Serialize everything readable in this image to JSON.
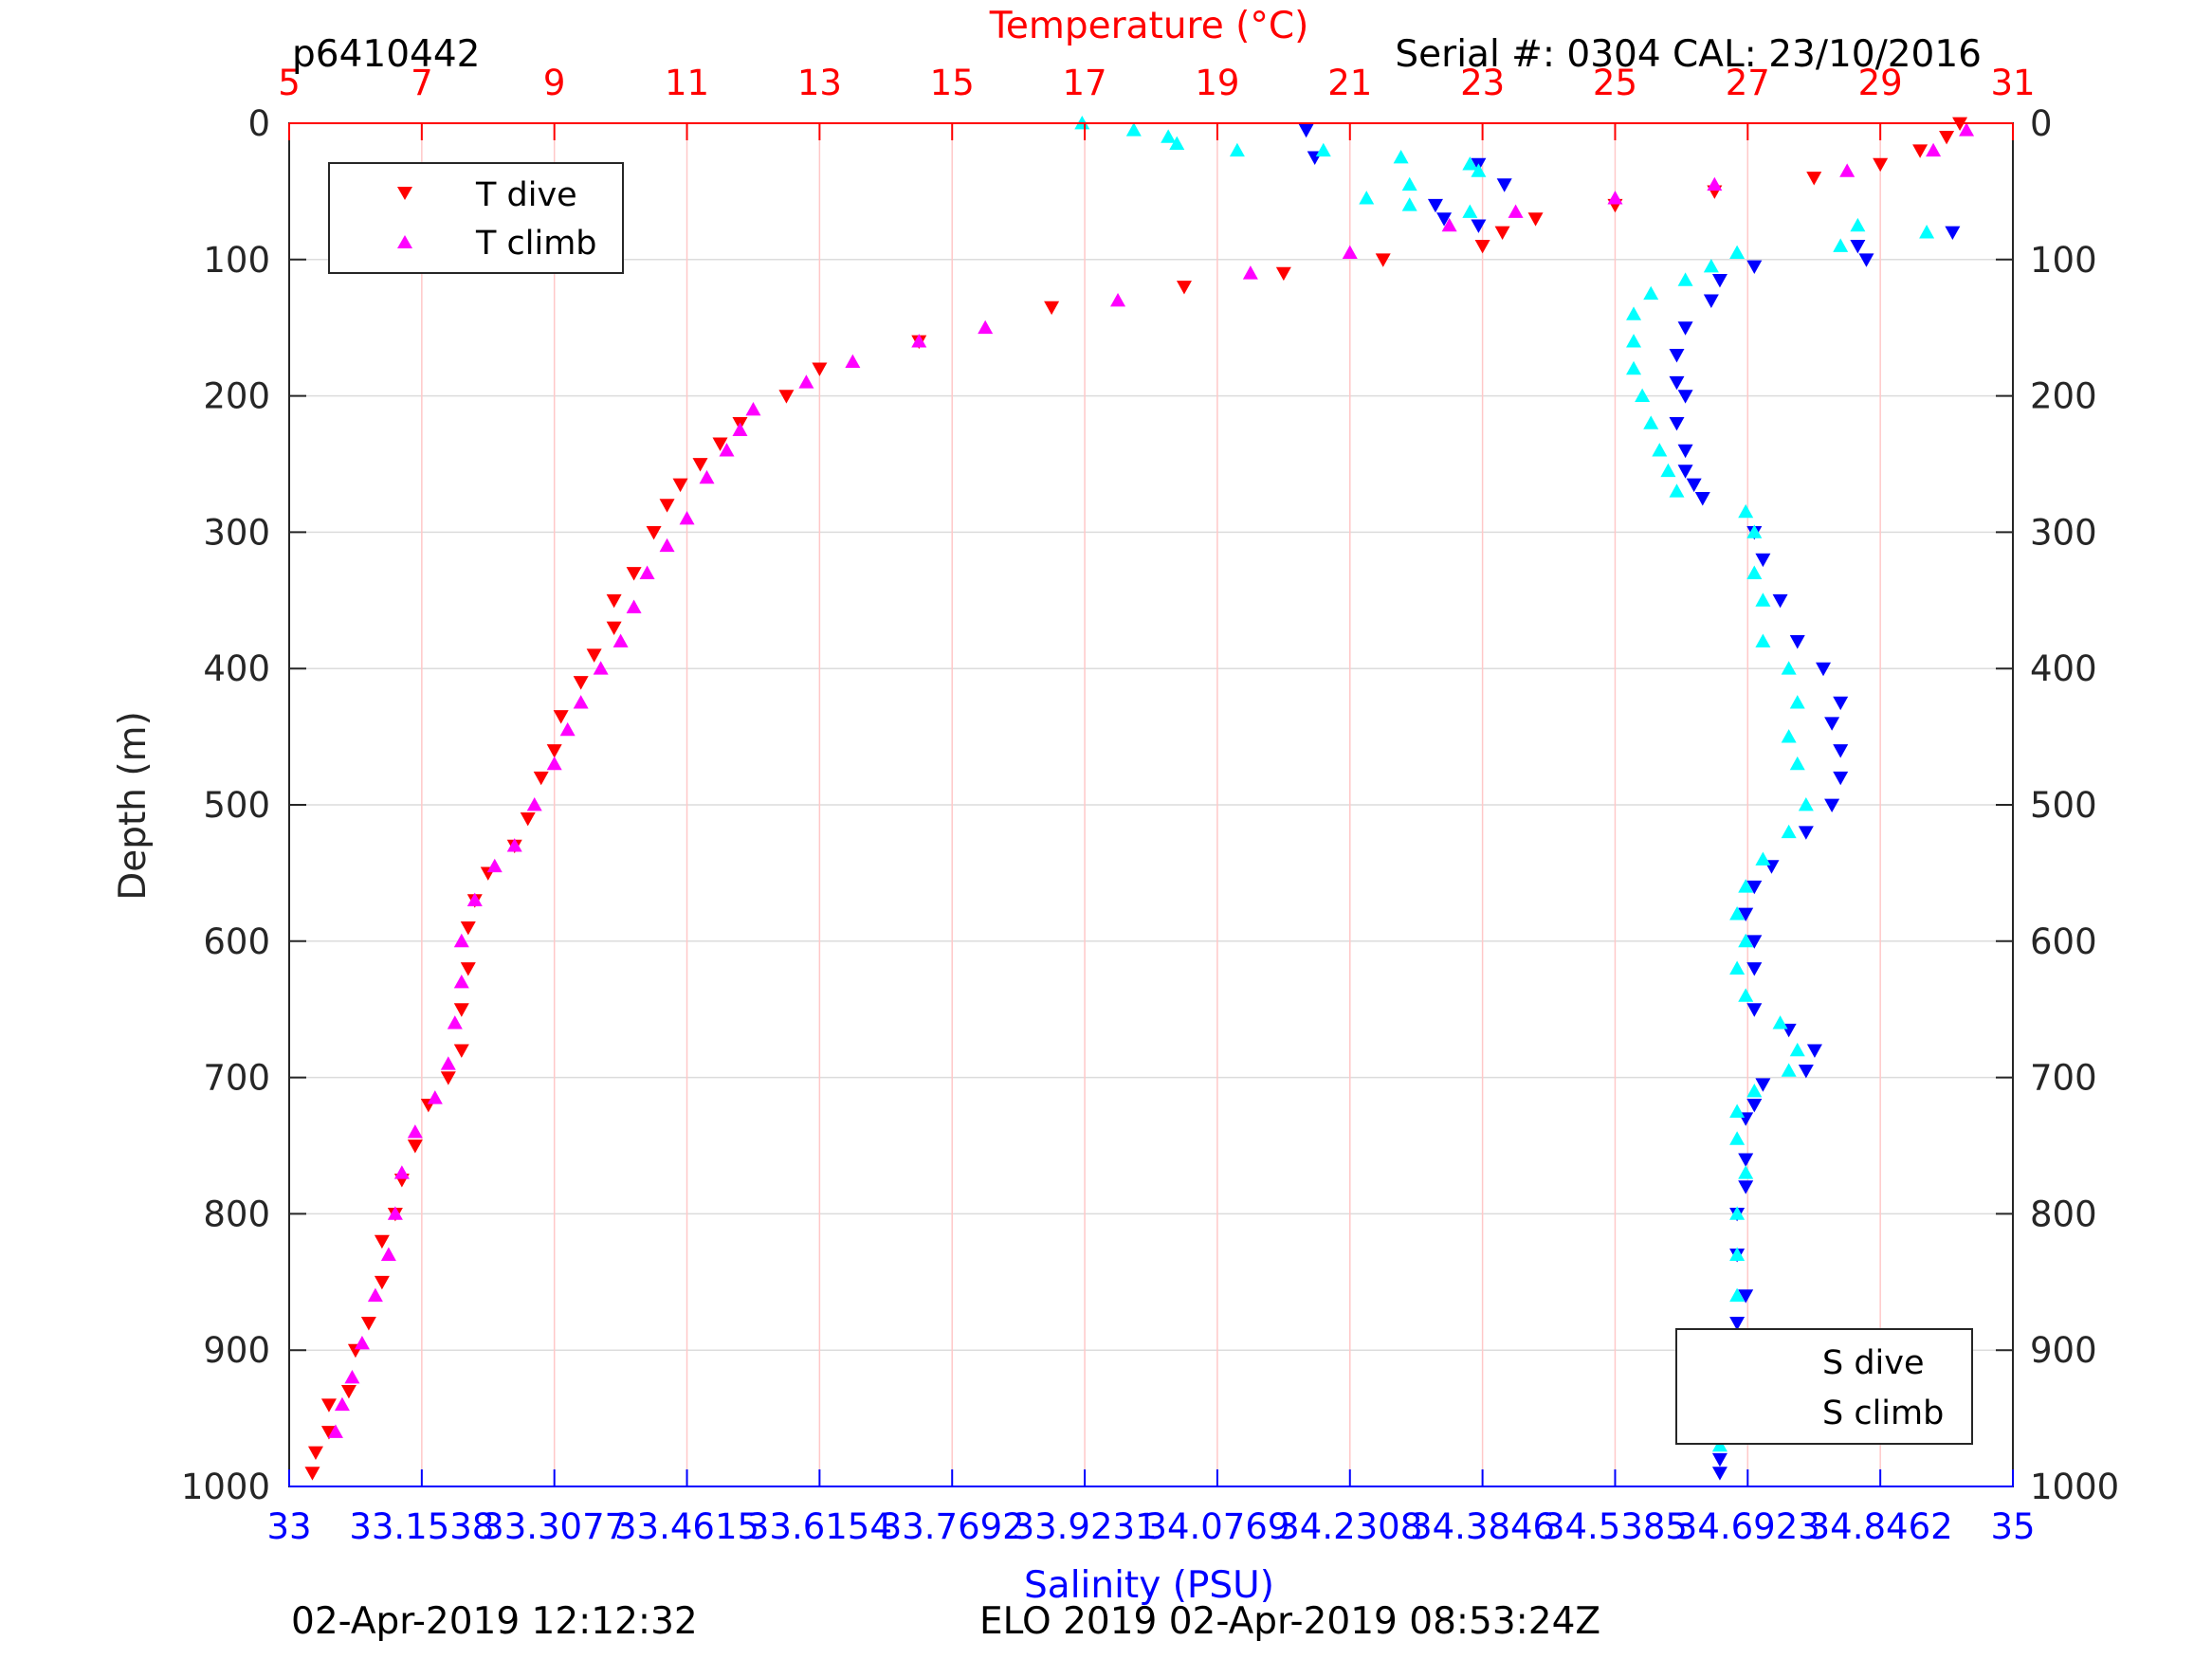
{
  "header": {
    "left_title": "p6410442",
    "right_title": "Serial #: 0304  CAL: 23/10/2016"
  },
  "footer": {
    "left": "02-Apr-2019 12:12:32",
    "center": "ELO 2019 02-Apr-2019 08:53:24Z"
  },
  "colors": {
    "t_dive": "#ff0000",
    "t_climb": "#ff00ff",
    "s_dive": "#0000ff",
    "s_climb": "#00ffff",
    "temp_axis": "#ff0000",
    "sal_axis": "#0000ff",
    "temp_grid": "#ffc8c8",
    "depth_grid": "#dcdcdc"
  },
  "chart_data": {
    "type": "scatter",
    "y_axis": {
      "label": "Depth (m)",
      "range": [
        0,
        1000
      ],
      "reversed": true,
      "ticks": [
        "0",
        "100",
        "200",
        "300",
        "400",
        "500",
        "600",
        "700",
        "800",
        "900",
        "1000"
      ]
    },
    "temperature_axis": {
      "label": "Temperature (°C)",
      "position": "top",
      "range": [
        5,
        31
      ],
      "ticks": [
        "5",
        "7",
        "9",
        "11",
        "13",
        "15",
        "17",
        "19",
        "21",
        "23",
        "25",
        "27",
        "29",
        "31"
      ]
    },
    "salinity_axis": {
      "label": "Salinity (PSU)",
      "position": "bottom",
      "range": [
        33,
        35
      ],
      "ticks": [
        "33",
        "33.1538",
        "33.3077",
        "33.4615",
        "33.6154",
        "33.7692",
        "33.9231",
        "34.0769",
        "34.2308",
        "34.3846",
        "34.5385",
        "34.6923",
        "34.8462",
        "35"
      ]
    },
    "grid": true,
    "legend_temperature": {
      "placement": "top-left",
      "entries": [
        "T dive",
        "T climb"
      ]
    },
    "legend_salinity": {
      "placement": "bottom-right",
      "entries": [
        "S dive",
        "S climb"
      ]
    },
    "series": [
      {
        "name": "T dive",
        "axis": "temperature",
        "marker": "triangle-down",
        "points": [
          [
            30.2,
            0
          ],
          [
            30.0,
            10
          ],
          [
            29.6,
            20
          ],
          [
            29.0,
            30
          ],
          [
            28.0,
            40
          ],
          [
            26.5,
            50
          ],
          [
            25.0,
            60
          ],
          [
            23.8,
            70
          ],
          [
            23.3,
            80
          ],
          [
            23.0,
            90
          ],
          [
            21.5,
            100
          ],
          [
            20.0,
            110
          ],
          [
            18.5,
            120
          ],
          [
            16.5,
            135
          ],
          [
            14.5,
            160
          ],
          [
            13.0,
            180
          ],
          [
            12.5,
            200
          ],
          [
            11.8,
            220
          ],
          [
            11.5,
            235
          ],
          [
            11.2,
            250
          ],
          [
            10.9,
            265
          ],
          [
            10.7,
            280
          ],
          [
            10.5,
            300
          ],
          [
            10.2,
            330
          ],
          [
            9.9,
            350
          ],
          [
            9.9,
            370
          ],
          [
            9.6,
            390
          ],
          [
            9.4,
            410
          ],
          [
            9.1,
            435
          ],
          [
            9.0,
            460
          ],
          [
            8.8,
            480
          ],
          [
            8.6,
            510
          ],
          [
            8.4,
            530
          ],
          [
            8.0,
            550
          ],
          [
            7.8,
            570
          ],
          [
            7.7,
            590
          ],
          [
            7.7,
            620
          ],
          [
            7.6,
            650
          ],
          [
            7.6,
            680
          ],
          [
            7.4,
            700
          ],
          [
            7.1,
            720
          ],
          [
            6.9,
            750
          ],
          [
            6.7,
            775
          ],
          [
            6.6,
            800
          ],
          [
            6.4,
            820
          ],
          [
            6.4,
            850
          ],
          [
            6.2,
            880
          ],
          [
            6.0,
            900
          ],
          [
            5.9,
            930
          ],
          [
            5.6,
            940
          ],
          [
            5.6,
            960
          ],
          [
            5.4,
            975
          ],
          [
            5.35,
            990
          ]
        ]
      },
      {
        "name": "T climb",
        "axis": "temperature",
        "marker": "triangle-up",
        "points": [
          [
            30.3,
            5
          ],
          [
            29.8,
            20
          ],
          [
            28.5,
            35
          ],
          [
            26.5,
            45
          ],
          [
            25.0,
            55
          ],
          [
            23.5,
            65
          ],
          [
            22.5,
            75
          ],
          [
            21.0,
            95
          ],
          [
            19.5,
            110
          ],
          [
            17.5,
            130
          ],
          [
            15.5,
            150
          ],
          [
            14.5,
            160
          ],
          [
            13.5,
            175
          ],
          [
            12.8,
            190
          ],
          [
            12.0,
            210
          ],
          [
            11.8,
            225
          ],
          [
            11.6,
            240
          ],
          [
            11.3,
            260
          ],
          [
            11.0,
            290
          ],
          [
            10.7,
            310
          ],
          [
            10.4,
            330
          ],
          [
            10.2,
            355
          ],
          [
            10.0,
            380
          ],
          [
            9.7,
            400
          ],
          [
            9.4,
            425
          ],
          [
            9.2,
            445
          ],
          [
            9.0,
            470
          ],
          [
            8.7,
            500
          ],
          [
            8.4,
            530
          ],
          [
            8.1,
            545
          ],
          [
            7.8,
            570
          ],
          [
            7.6,
            600
          ],
          [
            7.6,
            630
          ],
          [
            7.5,
            660
          ],
          [
            7.4,
            690
          ],
          [
            7.2,
            715
          ],
          [
            6.9,
            740
          ],
          [
            6.7,
            770
          ],
          [
            6.6,
            800
          ],
          [
            6.5,
            830
          ],
          [
            6.3,
            860
          ],
          [
            6.1,
            895
          ],
          [
            5.95,
            920
          ],
          [
            5.8,
            940
          ],
          [
            5.7,
            960
          ]
        ]
      },
      {
        "name": "S dive",
        "axis": "salinity",
        "marker": "triangle-down",
        "points": [
          [
            34.18,
            5
          ],
          [
            34.19,
            25
          ],
          [
            34.38,
            30
          ],
          [
            34.41,
            45
          ],
          [
            34.33,
            60
          ],
          [
            34.34,
            70
          ],
          [
            34.38,
            75
          ],
          [
            34.93,
            80
          ],
          [
            34.82,
            90
          ],
          [
            34.83,
            100
          ],
          [
            34.7,
            105
          ],
          [
            34.66,
            115
          ],
          [
            34.65,
            130
          ],
          [
            34.62,
            150
          ],
          [
            34.61,
            170
          ],
          [
            34.61,
            190
          ],
          [
            34.62,
            200
          ],
          [
            34.61,
            220
          ],
          [
            34.62,
            240
          ],
          [
            34.62,
            255
          ],
          [
            34.63,
            265
          ],
          [
            34.64,
            275
          ],
          [
            34.7,
            300
          ],
          [
            34.71,
            320
          ],
          [
            34.73,
            350
          ],
          [
            34.75,
            380
          ],
          [
            34.78,
            400
          ],
          [
            34.8,
            425
          ],
          [
            34.79,
            440
          ],
          [
            34.8,
            460
          ],
          [
            34.8,
            480
          ],
          [
            34.79,
            500
          ],
          [
            34.76,
            520
          ],
          [
            34.72,
            545
          ],
          [
            34.7,
            560
          ],
          [
            34.69,
            580
          ],
          [
            34.7,
            600
          ],
          [
            34.7,
            620
          ],
          [
            34.7,
            650
          ],
          [
            34.74,
            665
          ],
          [
            34.77,
            680
          ],
          [
            34.76,
            695
          ],
          [
            34.71,
            705
          ],
          [
            34.7,
            720
          ],
          [
            34.69,
            730
          ],
          [
            34.69,
            760
          ],
          [
            34.69,
            780
          ],
          [
            34.68,
            800
          ],
          [
            34.68,
            830
          ],
          [
            34.69,
            860
          ],
          [
            34.68,
            880
          ],
          [
            34.68,
            900
          ],
          [
            34.67,
            920
          ],
          [
            34.67,
            940
          ],
          [
            34.66,
            960
          ],
          [
            34.66,
            980
          ],
          [
            34.66,
            990
          ]
        ]
      },
      {
        "name": "S climb",
        "axis": "salinity",
        "marker": "triangle-up",
        "points": [
          [
            33.92,
            0
          ],
          [
            33.98,
            5
          ],
          [
            34.02,
            10
          ],
          [
            34.03,
            15
          ],
          [
            34.1,
            20
          ],
          [
            34.2,
            20
          ],
          [
            34.29,
            25
          ],
          [
            34.37,
            30
          ],
          [
            34.38,
            35
          ],
          [
            34.3,
            45
          ],
          [
            34.25,
            55
          ],
          [
            34.3,
            60
          ],
          [
            34.37,
            65
          ],
          [
            34.82,
            75
          ],
          [
            34.9,
            80
          ],
          [
            34.8,
            90
          ],
          [
            34.68,
            95
          ],
          [
            34.65,
            105
          ],
          [
            34.62,
            115
          ],
          [
            34.58,
            125
          ],
          [
            34.56,
            140
          ],
          [
            34.56,
            160
          ],
          [
            34.56,
            180
          ],
          [
            34.57,
            200
          ],
          [
            34.58,
            220
          ],
          [
            34.59,
            240
          ],
          [
            34.6,
            255
          ],
          [
            34.61,
            270
          ],
          [
            34.69,
            285
          ],
          [
            34.7,
            300
          ],
          [
            34.7,
            330
          ],
          [
            34.71,
            350
          ],
          [
            34.71,
            380
          ],
          [
            34.74,
            400
          ],
          [
            34.75,
            425
          ],
          [
            34.74,
            450
          ],
          [
            34.75,
            470
          ],
          [
            34.76,
            500
          ],
          [
            34.74,
            520
          ],
          [
            34.71,
            540
          ],
          [
            34.69,
            560
          ],
          [
            34.68,
            580
          ],
          [
            34.69,
            600
          ],
          [
            34.68,
            620
          ],
          [
            34.69,
            640
          ],
          [
            34.73,
            660
          ],
          [
            34.75,
            680
          ],
          [
            34.74,
            695
          ],
          [
            34.7,
            710
          ],
          [
            34.68,
            725
          ],
          [
            34.68,
            745
          ],
          [
            34.69,
            770
          ],
          [
            34.68,
            800
          ],
          [
            34.68,
            830
          ],
          [
            34.68,
            860
          ],
          [
            34.67,
            890
          ],
          [
            34.67,
            920
          ],
          [
            34.66,
            950
          ],
          [
            34.66,
            970
          ]
        ]
      }
    ]
  }
}
